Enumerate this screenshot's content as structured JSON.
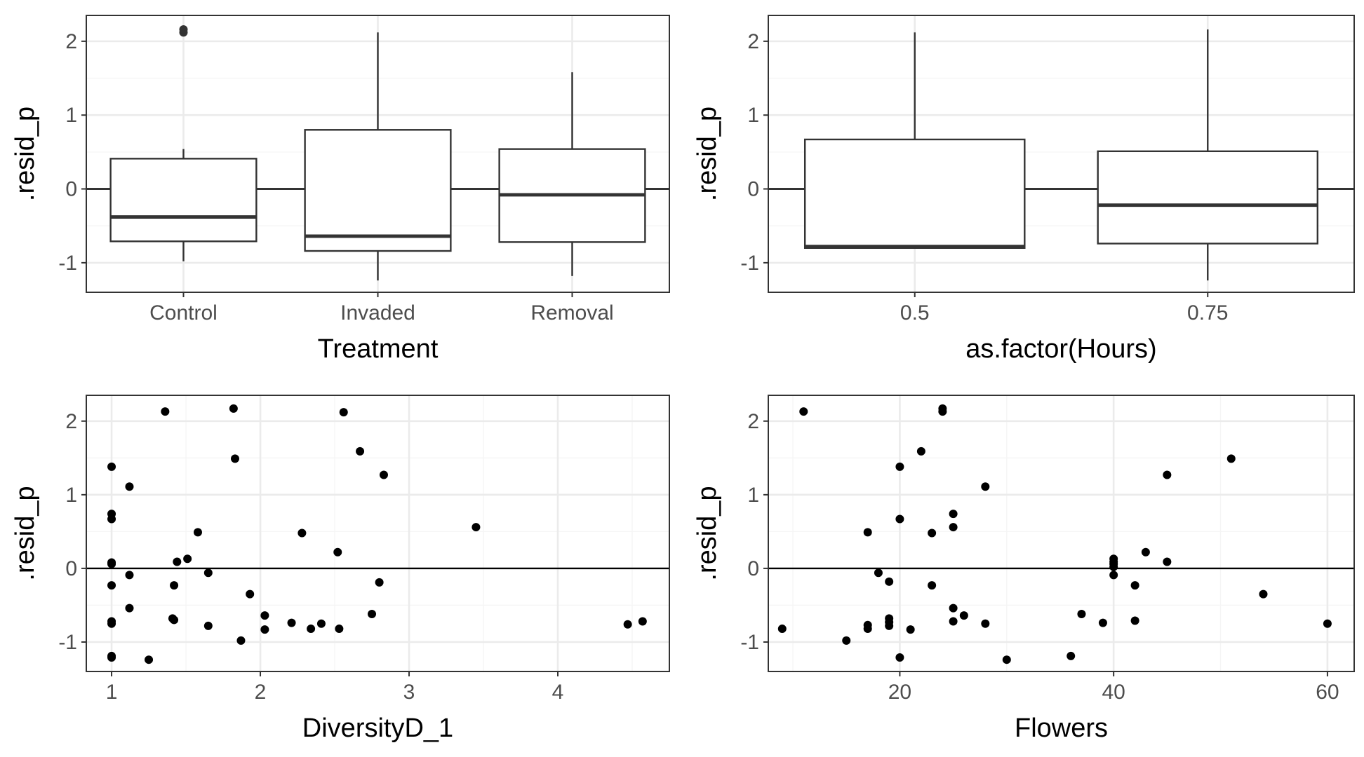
{
  "colors": {
    "panel_border": "#333333",
    "grid_major": "#ebebeb",
    "grid_minor": "#f5f5f5",
    "tick_text": "#4d4d4d",
    "box_line": "#333333",
    "point": "#000000",
    "zero_line": "#000000"
  },
  "chart_data": [
    {
      "type": "box",
      "xlabel": "Treatment",
      "ylabel": ".resid_p",
      "ylim": [
        -1.4,
        2.35
      ],
      "yticks": [
        -1,
        0,
        1,
        2
      ],
      "grid": true,
      "hline": 0,
      "categories": [
        "Control",
        "Invaded",
        "Removal"
      ],
      "boxes": [
        {
          "category": "Control",
          "min": -0.98,
          "q1": -0.71,
          "median": -0.38,
          "q3": 0.41,
          "max": 0.54,
          "outliers": [
            2.12,
            2.16
          ]
        },
        {
          "category": "Invaded",
          "min": -1.24,
          "q1": -0.84,
          "median": -0.64,
          "q3": 0.8,
          "max": 2.12,
          "outliers": []
        },
        {
          "category": "Removal",
          "min": -1.18,
          "q1": -0.72,
          "median": -0.08,
          "q3": 0.54,
          "max": 1.58,
          "outliers": []
        }
      ]
    },
    {
      "type": "box",
      "xlabel": "as.factor(Hours)",
      "ylabel": ".resid_p",
      "ylim": [
        -1.4,
        2.35
      ],
      "yticks": [
        -1,
        0,
        1,
        2
      ],
      "grid": true,
      "hline": 0,
      "categories": [
        "0.5",
        "0.75"
      ],
      "boxes": [
        {
          "category": "0.5",
          "min": -0.8,
          "q1": -0.8,
          "median": -0.78,
          "q3": 0.67,
          "max": 2.12,
          "outliers": []
        },
        {
          "category": "0.75",
          "min": -1.24,
          "q1": -0.74,
          "median": -0.22,
          "q3": 0.51,
          "max": 2.16,
          "outliers": []
        }
      ]
    },
    {
      "type": "scatter",
      "xlabel": "DiversityD_1",
      "ylabel": ".resid_p",
      "xlim": [
        0.83,
        4.75
      ],
      "ylim": [
        -1.4,
        2.35
      ],
      "xticks": [
        1,
        2,
        3,
        4
      ],
      "yticks": [
        -1,
        0,
        1,
        2
      ],
      "grid": true,
      "hline": 0,
      "points": [
        [
          1.0,
          1.38
        ],
        [
          1.0,
          0.74
        ],
        [
          1.0,
          0.67
        ],
        [
          1.0,
          0.08
        ],
        [
          1.0,
          0.06
        ],
        [
          1.0,
          -0.23
        ],
        [
          1.0,
          -0.72
        ],
        [
          1.0,
          -0.75
        ],
        [
          1.0,
          -1.19
        ],
        [
          1.0,
          -1.21
        ],
        [
          1.12,
          1.11
        ],
        [
          1.12,
          -0.09
        ],
        [
          1.12,
          -0.54
        ],
        [
          1.25,
          -1.24
        ],
        [
          1.36,
          2.13
        ],
        [
          1.41,
          -0.68
        ],
        [
          1.42,
          -0.7
        ],
        [
          1.42,
          -0.23
        ],
        [
          1.44,
          0.09
        ],
        [
          1.51,
          0.13
        ],
        [
          1.58,
          0.49
        ],
        [
          1.65,
          -0.06
        ],
        [
          1.65,
          -0.78
        ],
        [
          1.82,
          2.17
        ],
        [
          1.83,
          1.49
        ],
        [
          1.87,
          -0.98
        ],
        [
          1.93,
          -0.35
        ],
        [
          2.03,
          -0.64
        ],
        [
          2.03,
          -0.83
        ],
        [
          2.21,
          -0.74
        ],
        [
          2.28,
          0.48
        ],
        [
          2.34,
          -0.82
        ],
        [
          2.41,
          -0.75
        ],
        [
          2.52,
          0.22
        ],
        [
          2.53,
          -0.82
        ],
        [
          2.56,
          2.12
        ],
        [
          2.67,
          1.59
        ],
        [
          2.75,
          -0.62
        ],
        [
          2.8,
          -0.19
        ],
        [
          2.83,
          1.27
        ],
        [
          3.45,
          0.56
        ],
        [
          4.47,
          -0.76
        ],
        [
          4.57,
          -0.72
        ]
      ]
    },
    {
      "type": "scatter",
      "xlabel": "Flowers",
      "ylabel": ".resid_p",
      "xlim": [
        7.7,
        62.5
      ],
      "ylim": [
        -1.4,
        2.35
      ],
      "xticks": [
        20,
        40,
        60
      ],
      "yticks": [
        -1,
        0,
        1,
        2
      ],
      "grid": true,
      "hline": 0,
      "points": [
        [
          9,
          -0.82
        ],
        [
          11,
          2.13
        ],
        [
          15,
          -0.98
        ],
        [
          17,
          0.49
        ],
        [
          17,
          -0.77
        ],
        [
          17,
          -0.82
        ],
        [
          18,
          -0.06
        ],
        [
          19,
          -0.18
        ],
        [
          19,
          -0.68
        ],
        [
          19,
          -0.73
        ],
        [
          19,
          -0.78
        ],
        [
          20,
          1.38
        ],
        [
          20,
          0.67
        ],
        [
          20,
          -1.21
        ],
        [
          21,
          -0.83
        ],
        [
          22,
          1.59
        ],
        [
          23,
          0.48
        ],
        [
          23,
          -0.23
        ],
        [
          24,
          2.17
        ],
        [
          24,
          2.13
        ],
        [
          25,
          0.74
        ],
        [
          25,
          0.56
        ],
        [
          25,
          -0.54
        ],
        [
          25,
          -0.72
        ],
        [
          26,
          -0.64
        ],
        [
          28,
          1.11
        ],
        [
          28,
          -0.75
        ],
        [
          30,
          -1.24
        ],
        [
          36,
          -1.19
        ],
        [
          37,
          -0.62
        ],
        [
          39,
          -0.74
        ],
        [
          40,
          0.13
        ],
        [
          40,
          0.09
        ],
        [
          40,
          0.06
        ],
        [
          40,
          0.02
        ],
        [
          40,
          -0.09
        ],
        [
          42,
          -0.23
        ],
        [
          42,
          -0.71
        ],
        [
          43,
          0.22
        ],
        [
          45,
          1.27
        ],
        [
          45,
          0.09
        ],
        [
          51,
          1.49
        ],
        [
          54,
          -0.35
        ],
        [
          60,
          -0.75
        ]
      ]
    }
  ]
}
